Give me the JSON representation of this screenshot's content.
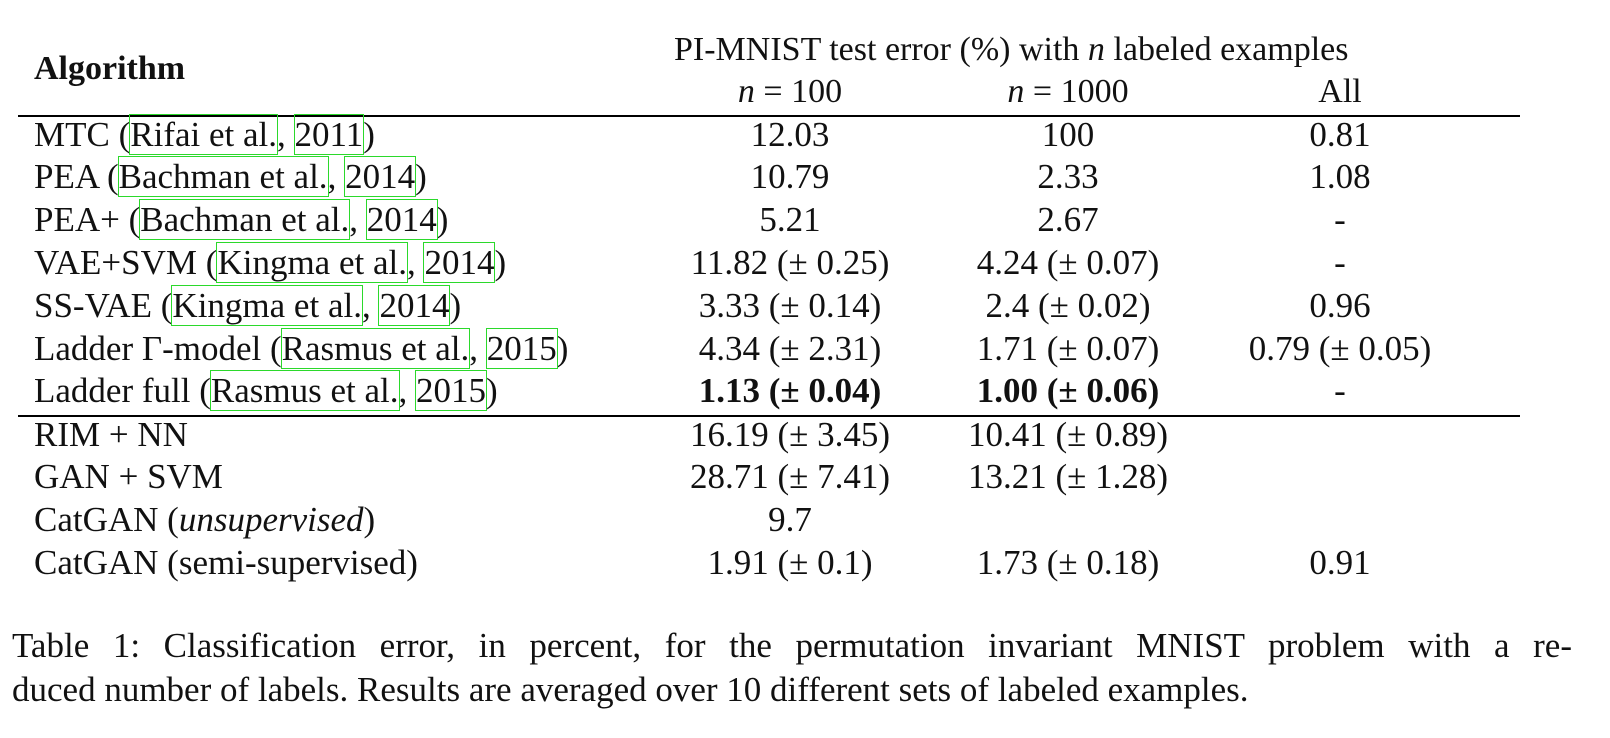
{
  "table": {
    "algorithm_header": "Algorithm",
    "group_header_pre": "PI-MNIST test error (%) with ",
    "group_header_var": "n",
    "group_header_post": " labeled examples",
    "columns": [
      {
        "var": "n",
        "rest": " = 100"
      },
      {
        "var": "n",
        "rest": " = 1000"
      },
      {
        "var": "",
        "rest": "All"
      }
    ],
    "rows_section1": [
      {
        "pre": "MTC (",
        "authors": "Rifai et al.",
        "sep": ", ",
        "year": "2011",
        "post": ")",
        "v": [
          "12.03",
          "100",
          "0.81"
        ]
      },
      {
        "pre": "PEA (",
        "authors": "Bachman et al.",
        "sep": ", ",
        "year": "2014",
        "post": ")",
        "v": [
          "10.79",
          "2.33",
          "1.08"
        ]
      },
      {
        "pre": "PEA+ (",
        "authors": "Bachman et al.",
        "sep": ", ",
        "year": "2014",
        "post": ")",
        "v": [
          "5.21",
          "2.67",
          "-"
        ]
      },
      {
        "pre": "VAE+SVM (",
        "authors": "Kingma et al.",
        "sep": ", ",
        "year": "2014",
        "post": ")",
        "v": [
          "11.82 (± 0.25)",
          "4.24 (± 0.07)",
          "-"
        ]
      },
      {
        "pre": "SS-VAE (",
        "authors": "Kingma et al.",
        "sep": ", ",
        "year": "2014",
        "post": ")",
        "v": [
          "3.33 (± 0.14)",
          "2.4 (± 0.02)",
          "0.96"
        ]
      },
      {
        "pre": "Ladder Γ-model (",
        "authors": "Rasmus et al.",
        "sep": ", ",
        "year": "2015",
        "post": ")",
        "v": [
          "4.34 (± 2.31)",
          "1.71 (± 0.07)",
          "0.79 (± 0.05)"
        ]
      },
      {
        "pre": "Ladder full (",
        "authors": "Rasmus et al.",
        "sep": ", ",
        "year": "2015",
        "post": ")",
        "v": [
          "1.13 (± 0.04)",
          "1.00 (± 0.06)",
          "-"
        ]
      }
    ],
    "rows_section2": [
      {
        "name": "RIM + NN",
        "v": [
          "16.19 (± 3.45)",
          "10.41 (± 0.89)",
          ""
        ]
      },
      {
        "name": "GAN + SVM",
        "v": [
          "28.71 (± 7.41)",
          "13.21 (± 1.28)",
          ""
        ]
      },
      {
        "name_pre": "CatGAN (",
        "name_it": "unsupervised",
        "name_post": ")",
        "v": [
          "9.7",
          "",
          ""
        ]
      },
      {
        "name": "CatGAN (semi-supervised)",
        "v": [
          "1.91 (± 0.1)",
          "1.73 (± 0.18)",
          "0.91"
        ]
      }
    ]
  },
  "caption": {
    "line1": "Table 1: Classification error, in percent, for the permutation invariant MNIST problem with a re-",
    "line2": "duced number of labels. Results are averaged over 10 different sets of labeled examples."
  },
  "colors": {
    "citation_box": "#2bd92b",
    "text": "#111111"
  }
}
